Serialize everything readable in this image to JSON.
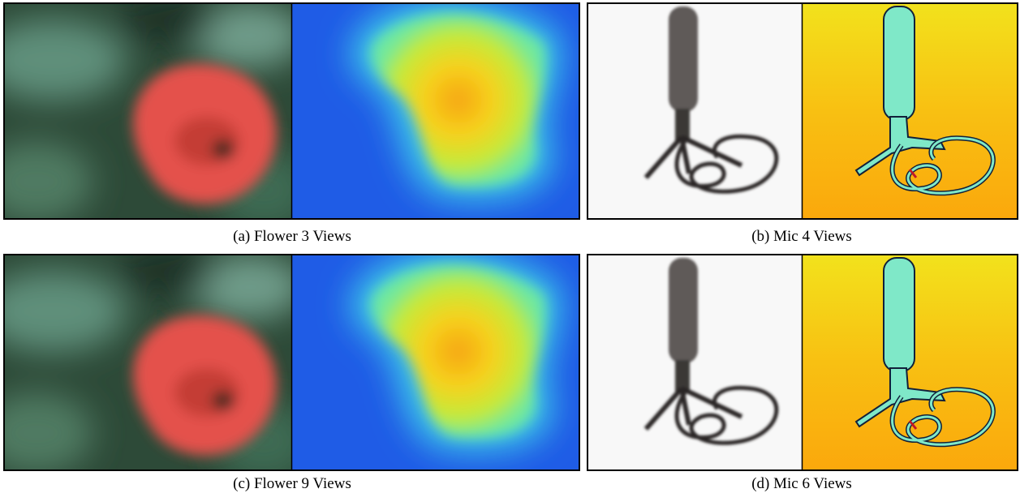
{
  "figure": {
    "panels": [
      {
        "caption": "(a) Flower 3 Views"
      },
      {
        "caption": "(b) Mic 4 Views"
      },
      {
        "caption": "(c) Flower 9 Views"
      },
      {
        "caption": "(d) Mic 6 Views"
      }
    ]
  }
}
